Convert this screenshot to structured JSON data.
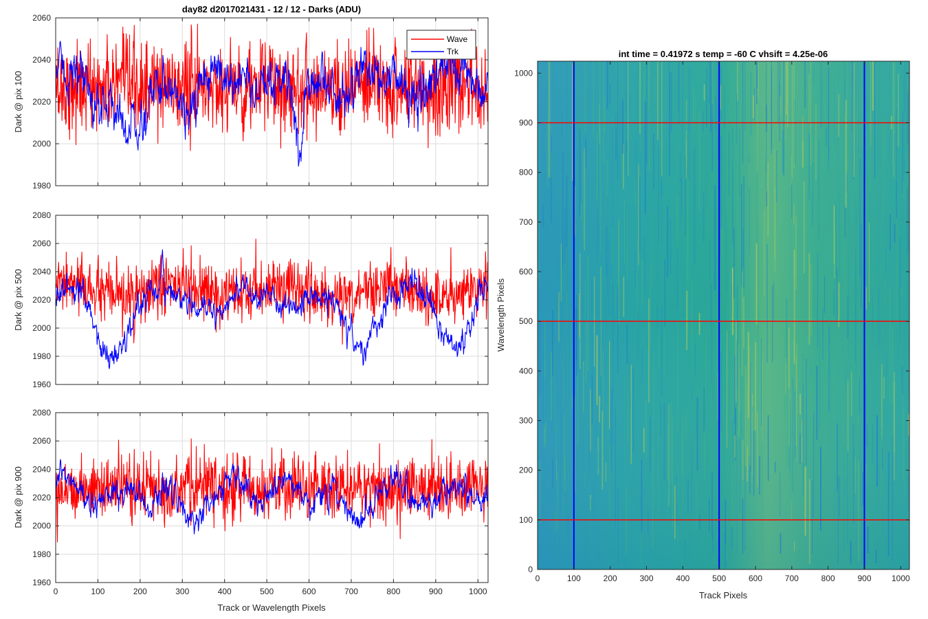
{
  "figure": {
    "suptitle": "day82 d2017021431 - 12 / 12 - Darks (ADU)",
    "shared_xlabel": "Track or Wavelength Pixels"
  },
  "colors": {
    "wave": "#ff0000",
    "trk": "#0000ff",
    "grid": "#dcdcdc",
    "axis": "#262626",
    "heatmap_low": "#1f78c0",
    "heatmap_mid": "#2aa899",
    "heatmap_high": "#b8c85a"
  },
  "chart_data": [
    {
      "id": "panel-1",
      "type": "line",
      "ylabel": "Dark @ pix 100",
      "xlim": [
        0,
        1024
      ],
      "ylim": [
        1980,
        2060
      ],
      "xticks": [
        0,
        100,
        200,
        300,
        400,
        500,
        600,
        700,
        800,
        900,
        1000
      ],
      "yticks": [
        1980,
        2000,
        2020,
        2040,
        2060
      ],
      "show_xtick_labels": false,
      "grid": true,
      "legend": {
        "placement": "top-right",
        "entries": [
          "Wave",
          "Trk"
        ]
      },
      "series": [
        {
          "name": "Wave",
          "color": "#ff0000",
          "baseline": 2027,
          "noise": 11,
          "waves": [],
          "dips": []
        },
        {
          "name": "Trk",
          "color": "#0000ff",
          "baseline": 2030,
          "noise": 6,
          "waves": [
            [
              5,
              180,
              0.3
            ],
            [
              3,
              90,
              1.1
            ]
          ],
          "dips": [
            [
              190,
              25,
              30
            ],
            [
              95,
              20,
              12
            ],
            [
              330,
              25,
              8
            ],
            [
              575,
              10,
              25
            ],
            [
              560,
              15,
              10
            ]
          ]
        }
      ]
    },
    {
      "id": "panel-2",
      "type": "line",
      "ylabel": "Dark @ pix 500",
      "xlim": [
        0,
        1024
      ],
      "ylim": [
        1960,
        2080
      ],
      "xticks": [
        0,
        100,
        200,
        300,
        400,
        500,
        600,
        700,
        800,
        900,
        1000
      ],
      "yticks": [
        1960,
        1980,
        2000,
        2020,
        2040,
        2060,
        2080
      ],
      "show_xtick_labels": false,
      "grid": true,
      "series": [
        {
          "name": "Wave",
          "color": "#ff0000",
          "baseline": 2026,
          "noise": 10,
          "waves": [
            [
              5,
              250,
              0.7
            ]
          ],
          "dips": []
        },
        {
          "name": "Trk",
          "color": "#0000ff",
          "baseline": 2022,
          "noise": 5,
          "waves": [
            [
              8,
              200,
              0.2
            ]
          ],
          "dips": [
            [
              130,
              40,
              35
            ],
            [
              720,
              35,
              30
            ],
            [
              945,
              30,
              28
            ],
            [
              390,
              25,
              8
            ],
            [
              640,
              20,
              8
            ]
          ]
        }
      ]
    },
    {
      "id": "panel-3",
      "type": "line",
      "ylabel": "Dark @ pix 900",
      "xlabel": "Track or Wavelength Pixels",
      "xlim": [
        0,
        1024
      ],
      "ylim": [
        1960,
        2080
      ],
      "xticks": [
        0,
        100,
        200,
        300,
        400,
        500,
        600,
        700,
        800,
        900,
        1000
      ],
      "yticks": [
        1960,
        1980,
        2000,
        2020,
        2040,
        2060,
        2080
      ],
      "show_xtick_labels": true,
      "grid": true,
      "series": [
        {
          "name": "Wave",
          "color": "#ff0000",
          "baseline": 2027,
          "noise": 11,
          "waves": [],
          "dips": []
        },
        {
          "name": "Trk",
          "color": "#0000ff",
          "baseline": 2025,
          "noise": 5,
          "waves": [
            [
              9,
              130,
              0.4
            ]
          ],
          "dips": [
            [
              310,
              20,
              25
            ],
            [
              700,
              25,
              20
            ],
            [
              920,
              20,
              10
            ],
            [
              150,
              20,
              10
            ]
          ]
        }
      ]
    },
    {
      "id": "panel-4",
      "type": "heatmap",
      "title": "int time = 0.41972 s   temp = -60 C   vhsift = 4.25e-06",
      "xlabel": "Track Pixels",
      "ylabel": "Wavelength Pixels",
      "xlim": [
        0,
        1024
      ],
      "ylim": [
        0,
        1024
      ],
      "xticks": [
        0,
        100,
        200,
        300,
        400,
        500,
        600,
        700,
        800,
        900,
        1000
      ],
      "yticks": [
        0,
        100,
        200,
        300,
        400,
        500,
        600,
        700,
        800,
        900,
        1000
      ],
      "grid": false,
      "vertical_lines": {
        "color": "#0000ff",
        "x": [
          100,
          500,
          900
        ]
      },
      "horizontal_lines": {
        "color": "#ff0000",
        "y": [
          100,
          500,
          900
        ]
      }
    }
  ]
}
